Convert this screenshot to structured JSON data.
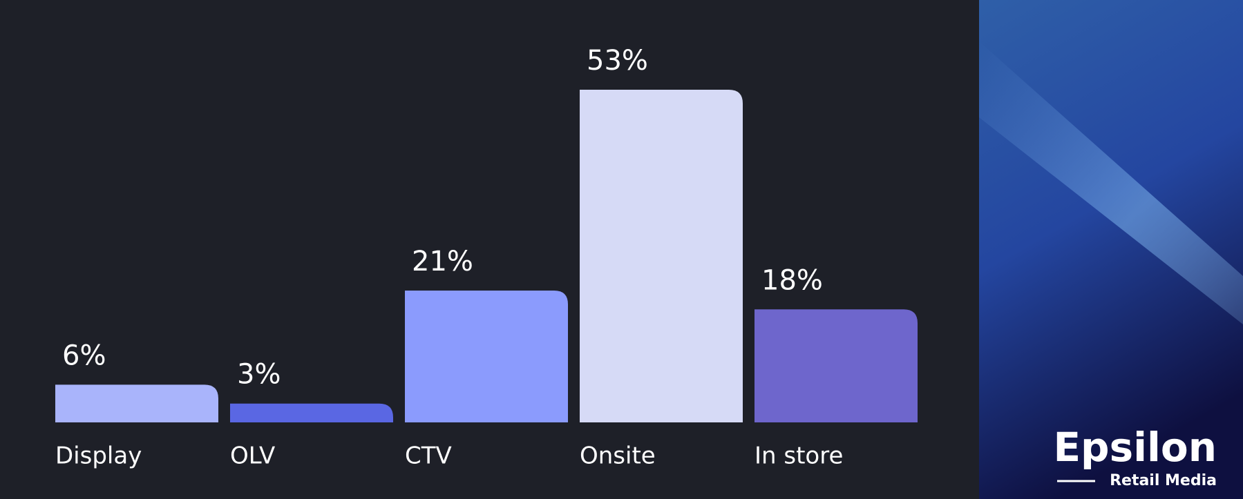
{
  "chart_data": {
    "type": "bar",
    "categories": [
      "Display",
      "OLV",
      "CTV",
      "Onsite",
      "In store"
    ],
    "values": [
      6,
      3,
      21,
      53,
      18
    ],
    "value_labels": [
      "6%",
      "3%",
      "21%",
      "53%",
      "18%"
    ],
    "colors": [
      "#a9b4fb",
      "#5a67e3",
      "#8b9bfd",
      "#d6daf6",
      "#6e66cc"
    ]
  },
  "logo": {
    "name": "Epsilon",
    "tagline": "Retail Media"
  }
}
